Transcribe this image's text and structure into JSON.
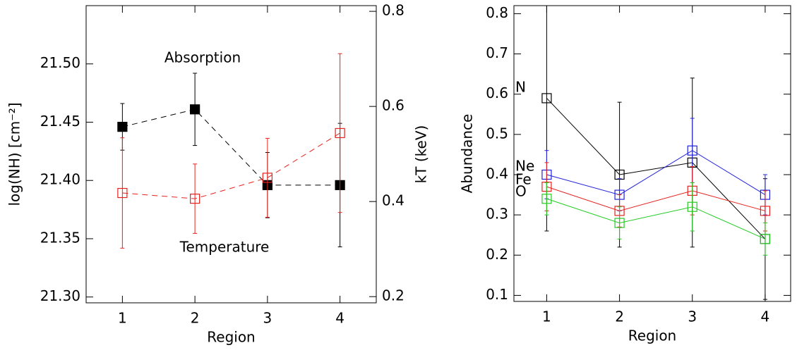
{
  "chart_data": [
    {
      "type": "line",
      "xlabel": "Region",
      "ylabel": "log(NH) [cm⁻²]",
      "y2label": "kT (keV)",
      "x": [
        1,
        2,
        3,
        4
      ],
      "xlim": [
        0.5,
        4.5
      ],
      "xticks": [
        1,
        2,
        3,
        4
      ],
      "ylim": [
        21.295,
        21.55
      ],
      "yticks": [
        {
          "value": 21.3,
          "label": "21.30"
        },
        {
          "value": 21.35,
          "label": "21.35"
        },
        {
          "value": 21.4,
          "label": "21.40"
        },
        {
          "value": 21.45,
          "label": "21.45"
        },
        {
          "value": 21.5,
          "label": "21.50"
        }
      ],
      "y2lim": [
        0.187,
        0.812
      ],
      "y2ticks": [
        0.2,
        0.4,
        0.6,
        0.8
      ],
      "series": [
        {
          "name": "Absorption",
          "color": "#000000",
          "marker": "filled-square",
          "linestyle": "dashed",
          "values": [
            21.446,
            21.461,
            21.396,
            21.396
          ],
          "errors": [
            0.02,
            0.031,
            0.028,
            0.053
          ]
        },
        {
          "name": "Temperature",
          "color": "#e8211d",
          "marker": "open-square",
          "linestyle": "dashed",
          "axis": "y2",
          "values": [
            0.418,
            0.406,
            0.45,
            0.544
          ],
          "errors": [
            0.116,
            0.073,
            0.083,
            0.167
          ]
        }
      ]
    },
    {
      "type": "line",
      "xlabel": "Region",
      "ylabel": "Abundance",
      "x": [
        1,
        2,
        3,
        4
      ],
      "xlim": [
        0.55,
        4.35
      ],
      "xticks": [
        1,
        2,
        3,
        4
      ],
      "ylim": [
        0.085,
        0.82
      ],
      "yticks": [
        0.1,
        0.2,
        0.3,
        0.4,
        0.5,
        0.6,
        0.7,
        0.8
      ],
      "series": [
        {
          "name": "N",
          "color": "#000000",
          "marker": "open-square",
          "linestyle": "solid",
          "values": [
            0.59,
            0.4,
            0.43,
            0.24
          ],
          "errors": [
            0.33,
            0.18,
            0.21,
            0.15
          ]
        },
        {
          "name": "Ne",
          "color": "#2222dd",
          "marker": "open-square",
          "linestyle": "solid",
          "values": [
            0.4,
            0.35,
            0.46,
            0.35
          ],
          "errors": [
            0.06,
            0.04,
            0.08,
            0.05
          ]
        },
        {
          "name": "Fe",
          "color": "#e8211d",
          "marker": "open-square",
          "linestyle": "solid",
          "values": [
            0.37,
            0.31,
            0.36,
            0.31
          ],
          "errors": [
            0.06,
            0.04,
            0.06,
            0.05
          ]
        },
        {
          "name": "O",
          "color": "#22cc22",
          "marker": "open-square",
          "linestyle": "solid",
          "values": [
            0.34,
            0.28,
            0.32,
            0.24
          ],
          "errors": [
            0.04,
            0.04,
            0.06,
            0.04
          ]
        }
      ]
    }
  ]
}
